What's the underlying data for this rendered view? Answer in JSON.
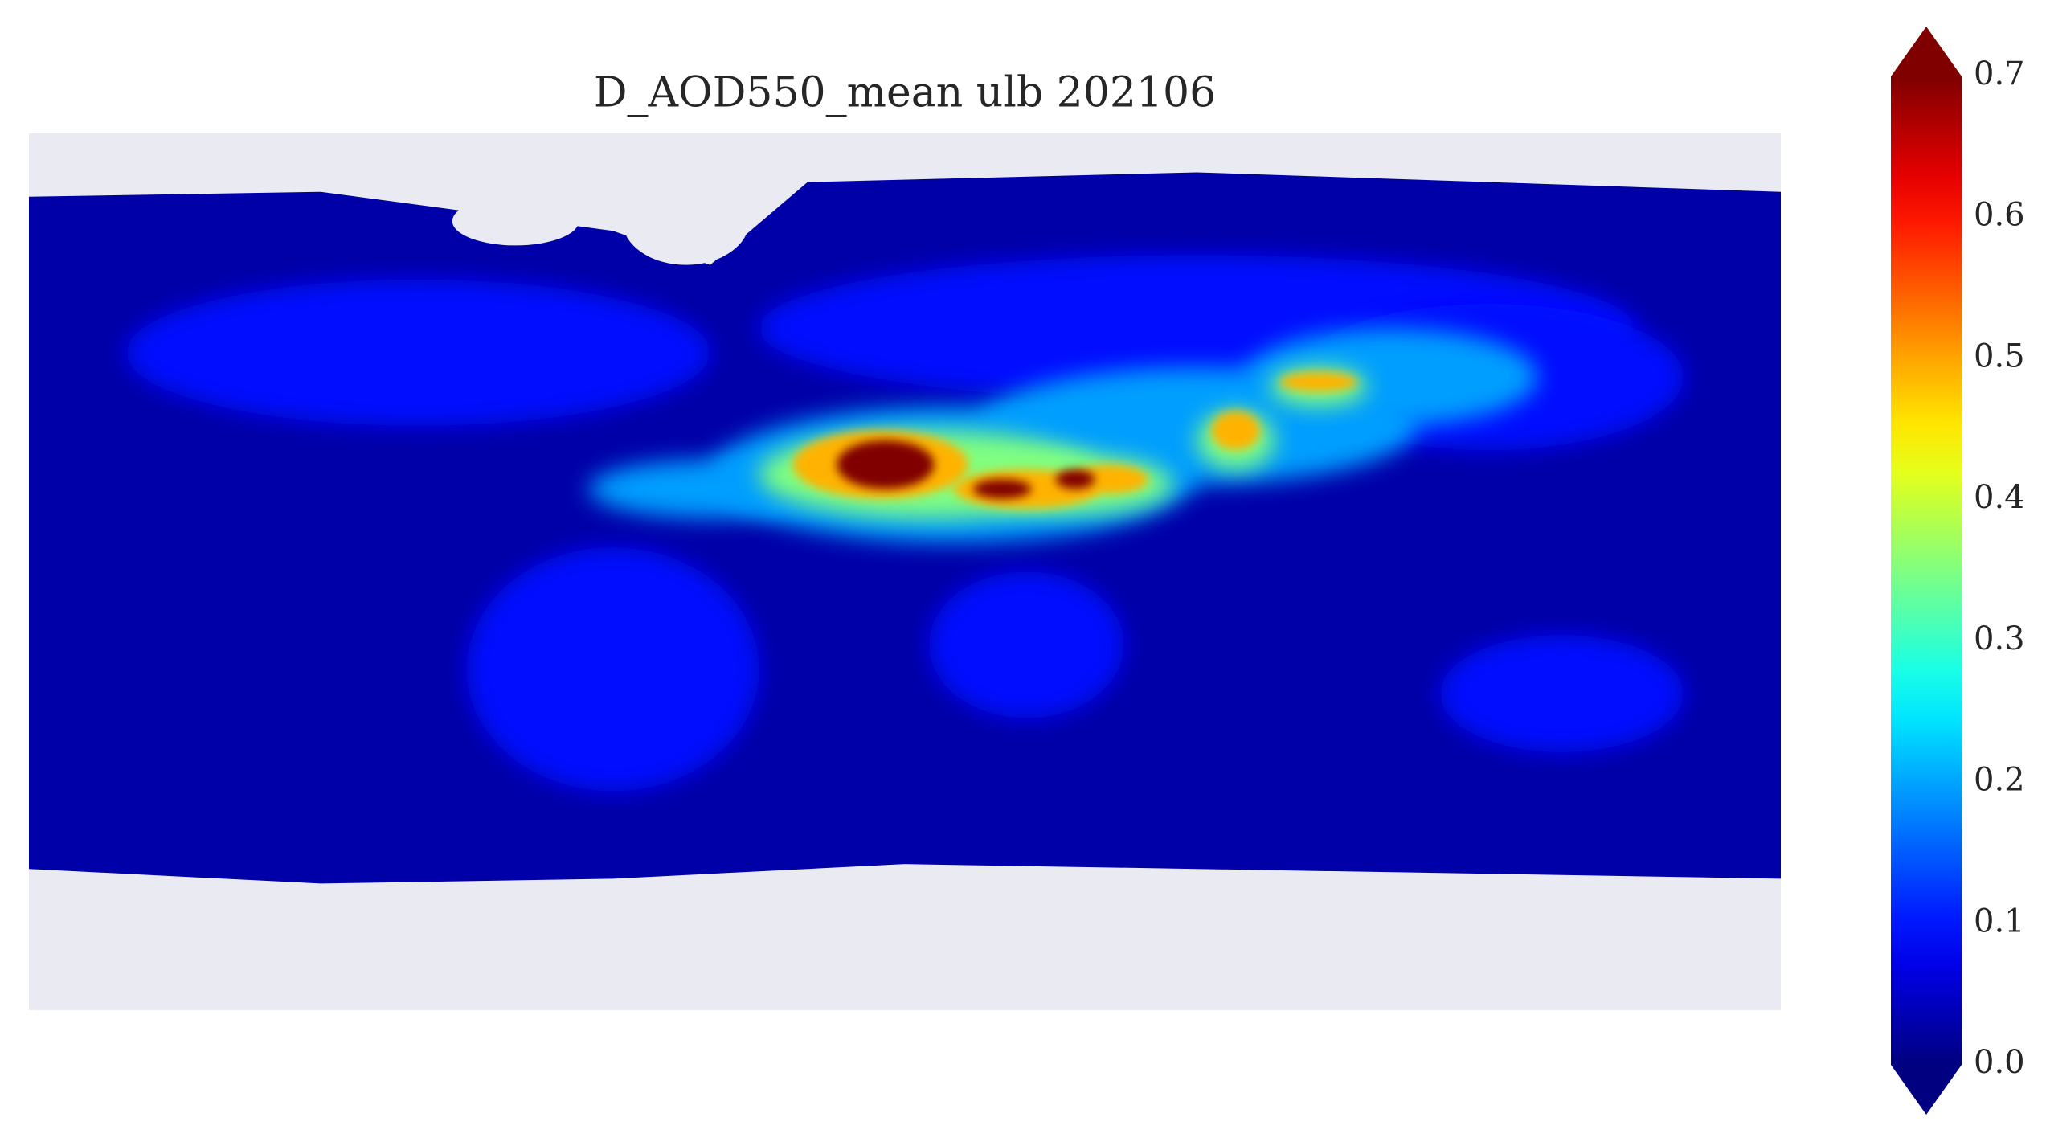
{
  "chart_data": {
    "type": "map",
    "title": "D_AOD550_mean ulb  202106",
    "colormap": "jet",
    "clim": [
      0,
      0.7
    ],
    "colorbar_ticks": [
      {
        "value": 0,
        "label": "0.0"
      },
      0.1,
      0.2,
      0.3,
      0.4,
      0.5,
      0.6,
      0.7
    ]
  }
}
